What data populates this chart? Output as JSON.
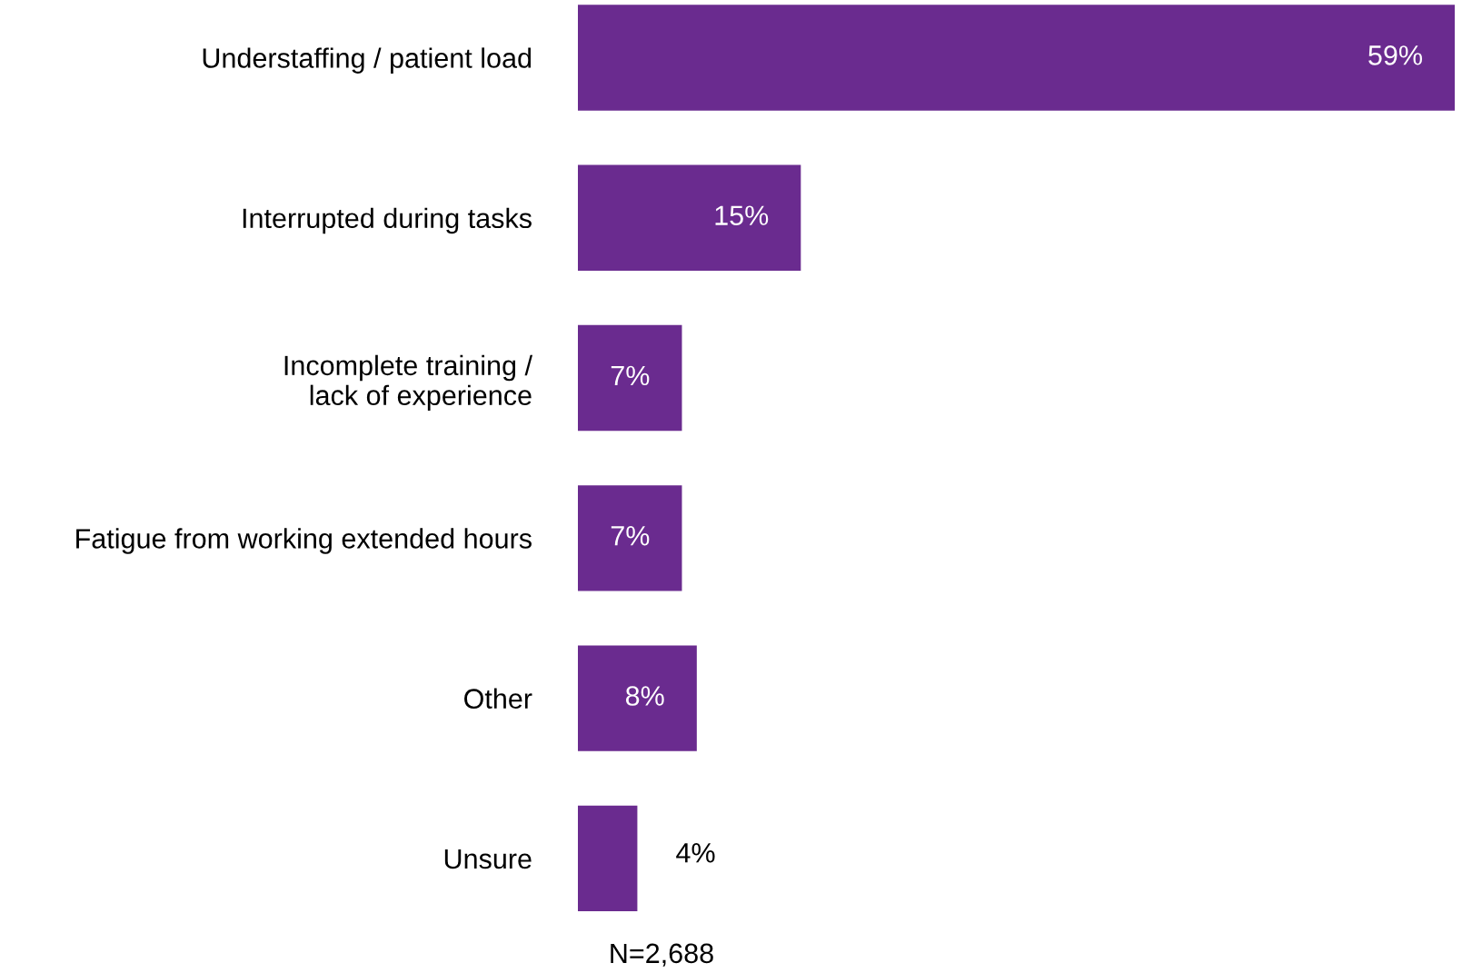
{
  "chart_data": {
    "type": "bar",
    "orientation": "horizontal",
    "categories": [
      "Understaffing / patient load",
      "Interrupted during tasks",
      "Incomplete training /\nlack of experience",
      "Fatigue from working extended hours",
      "Other",
      "Unsure"
    ],
    "values": [
      59,
      15,
      7,
      7,
      8,
      4
    ],
    "value_labels": [
      "59%",
      "15%",
      "7%",
      "7%",
      "8%",
      "4%"
    ],
    "color": "#6a2b8f",
    "tick_labels": "y",
    "annotations": [
      "N=2,688"
    ]
  }
}
